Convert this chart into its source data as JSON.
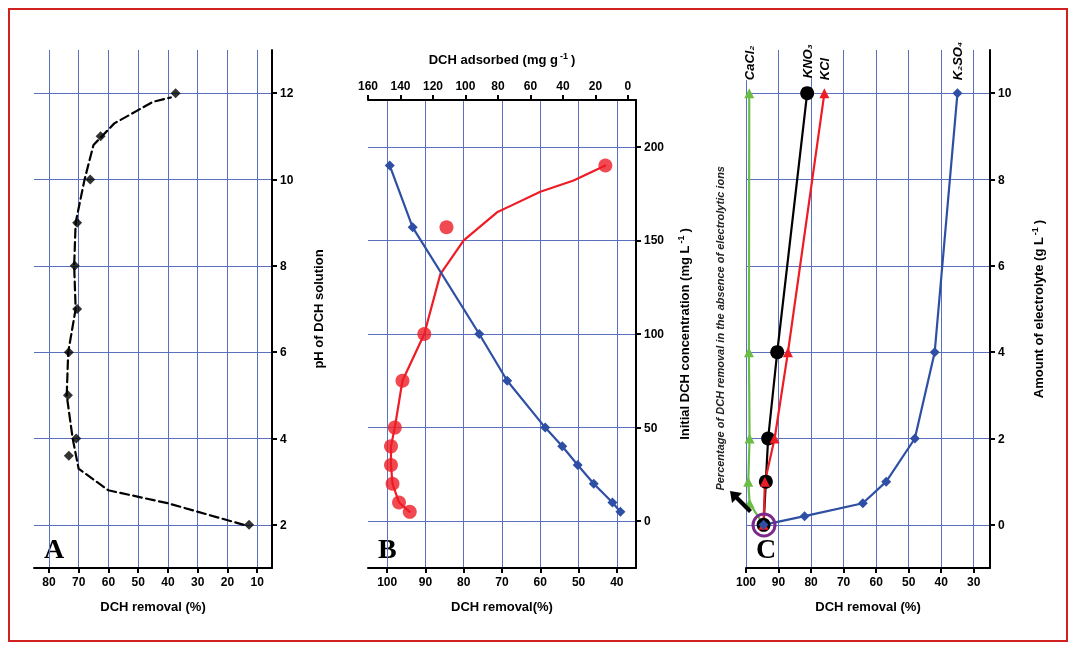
{
  "chart_data": [
    {
      "type": "scatter",
      "xlabel": "DCH removal (%)",
      "ylabel": "pH of DCH solution",
      "xlim": [
        85,
        5
      ],
      "xticks": [
        80,
        70,
        60,
        50,
        40,
        30,
        20,
        10
      ],
      "ylim": [
        1,
        13
      ],
      "yticks": [
        2,
        4,
        6,
        8,
        10,
        12
      ],
      "grid": true,
      "annotations": [
        "A"
      ],
      "series": [
        {
          "color": "#000000",
          "marker": "diamond",
          "x": [
            12.7,
            73.3,
            70.8,
            73.6,
            73.3,
            70.5,
            71.3,
            70.5,
            66.1,
            62.6,
            37.4
          ],
          "values": [
            2,
            3.6,
            4,
            5,
            6,
            7,
            8,
            9,
            10,
            11,
            12
          ]
        },
        {
          "type": "line",
          "color": "#000000",
          "marker": "none",
          "line_style": "dashed",
          "x": [
            14.5,
            40,
            60,
            70,
            72,
            74,
            73.5,
            71,
            71.5,
            71,
            68,
            65,
            58,
            45,
            39
          ],
          "values": [
            2,
            2.5,
            2.8,
            3.3,
            4,
            5,
            6,
            7,
            8,
            9,
            10,
            10.8,
            11.3,
            11.8,
            11.9
          ]
        }
      ]
    },
    {
      "type": "scatter",
      "xlabel": "DCH removal(%)",
      "x2label": "DCH adsorbed (mg g$^{-1}$)",
      "ylabel": "Initial DCH concentration (mg L$^{-1}$)",
      "xlim": [
        105,
        35
      ],
      "xticks": [
        100,
        90,
        80,
        70,
        60,
        50,
        40
      ],
      "x2lim": [
        160,
        -5
      ],
      "x2ticks": [
        160,
        140,
        120,
        100,
        80,
        60,
        40,
        20,
        0
      ],
      "ylim": [
        -25,
        225
      ],
      "yticks": [
        0,
        50,
        100,
        150,
        200
      ],
      "grid": true,
      "annotations": [
        "B"
      ],
      "series": [
        {
          "color": "#ee1c25",
          "marker": "circle",
          "x": [
            94.1,
            96.9,
            98.6,
            99,
            99,
            98,
            96,
            90.3,
            84.5,
            43
          ],
          "values": [
            5,
            10,
            20,
            30,
            40,
            50,
            75,
            100,
            157,
            190
          ]
        },
        {
          "type": "line",
          "color": "#ee1c25",
          "marker": "none",
          "x": [
            94.1,
            96.9,
            98.6,
            99,
            99,
            98,
            96,
            90.3,
            86.1,
            80,
            71.3,
            60,
            51.3,
            43
          ],
          "values": [
            5,
            10,
            20,
            30,
            40,
            50,
            75,
            100,
            132,
            150,
            165,
            176,
            182,
            190
          ]
        },
        {
          "type": "line",
          "axis": "x2",
          "color": "#2e4fa3",
          "marker": "diamond",
          "x": [
            4.6,
            9.5,
            21,
            30.9,
            40.4,
            50.9,
            74.3,
            91.5,
            132.5,
            146.6
          ],
          "values": [
            5,
            10,
            20,
            30,
            40,
            50,
            75,
            100,
            157,
            190
          ]
        }
      ]
    },
    {
      "type": "line",
      "xlabel": "DCH removal (%)",
      "ylabel": "Amount of electrolyte (g L$^{-1}$)",
      "xlim": [
        100,
        25
      ],
      "xticks": [
        100,
        90,
        80,
        70,
        60,
        50,
        40,
        30
      ],
      "ylim": [
        -1,
        11
      ],
      "yticks": [
        0,
        2,
        4,
        6,
        8,
        10
      ],
      "grid": true,
      "annotations": [
        "C",
        "Percentage of DCH removal in the absence of electrolytic ions"
      ],
      "series": [
        {
          "name": "CaCl₂",
          "color": "#6cbd45",
          "marker": "triangle",
          "x": [
            94.6,
            98.9,
            99.3,
            98.9,
            99.1,
            99
          ],
          "values": [
            0,
            0.5,
            1,
            2,
            4,
            10
          ]
        },
        {
          "name": "KNO₃",
          "color": "#000000",
          "marker": "circle",
          "x": [
            94.6,
            93.9,
            93.2,
            90.4,
            81.2
          ],
          "values": [
            0,
            1,
            2,
            4,
            10
          ]
        },
        {
          "name": "KCl",
          "color": "#ee1c25",
          "marker": "triangle",
          "x": [
            94.6,
            94.2,
            91.2,
            87.1,
            75.9
          ],
          "values": [
            0,
            1,
            2,
            4,
            10
          ]
        },
        {
          "name": "K₂SO₄",
          "color": "#2e4fa3",
          "marker": "diamond",
          "x": [
            94.6,
            82,
            64.1,
            56.9,
            48.1,
            42,
            35
          ],
          "values": [
            0,
            0.2,
            0.5,
            1,
            2,
            4,
            10
          ]
        }
      ]
    }
  ]
}
